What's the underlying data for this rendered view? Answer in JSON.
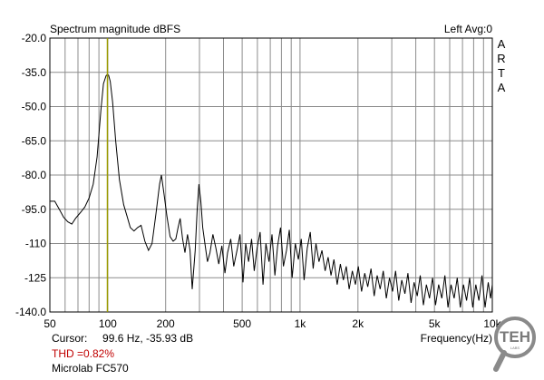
{
  "chart_data": {
    "type": "line",
    "title": "Spectrum magnitude dBFS",
    "right_title": "Left Avg:0",
    "watermark": [
      "A",
      "R",
      "T",
      "A"
    ],
    "xlabel": "Frequency(Hz)",
    "x_scale": "log",
    "xlim": [
      50,
      10000
    ],
    "ylim": [
      -140,
      -20
    ],
    "y_ticks": [
      -20.0,
      -35.0,
      -50.0,
      -65.0,
      -80.0,
      -95.0,
      -110,
      -125,
      -140.0
    ],
    "y_tick_labels": [
      "-20.0",
      "-35.0",
      "-50.0",
      "-65.0",
      "-80.0",
      "-95.0",
      "-110",
      "-125",
      "-140.0"
    ],
    "x_ticks": [
      50,
      100,
      200,
      500,
      1000,
      2000,
      5000,
      10000
    ],
    "x_tick_labels": [
      "50",
      "100",
      "200",
      "500",
      "1k",
      "2k",
      "5k",
      "10k"
    ],
    "grid": true,
    "cursor_frequency_hz": 99.6,
    "cursor_level_db": -35.93,
    "series": [
      {
        "color": "#000000",
        "points": [
          [
            50,
            -91.5
          ],
          [
            53,
            -91.5
          ],
          [
            56,
            -95
          ],
          [
            59,
            -98.5
          ],
          [
            62,
            -100.5
          ],
          [
            65,
            -101.5
          ],
          [
            68,
            -99
          ],
          [
            72,
            -96.5
          ],
          [
            76,
            -94
          ],
          [
            80,
            -90
          ],
          [
            84,
            -84
          ],
          [
            88,
            -72
          ],
          [
            92,
            -52
          ],
          [
            95,
            -40
          ],
          [
            98,
            -36.5
          ],
          [
            99.6,
            -35.9
          ],
          [
            101,
            -36.3
          ],
          [
            103,
            -39
          ],
          [
            106,
            -48
          ],
          [
            110,
            -65
          ],
          [
            115,
            -82
          ],
          [
            121,
            -93
          ],
          [
            126,
            -98
          ],
          [
            131,
            -103
          ],
          [
            137,
            -104.5
          ],
          [
            143,
            -103
          ],
          [
            149,
            -102
          ],
          [
            156,
            -109
          ],
          [
            163,
            -113
          ],
          [
            170,
            -110
          ],
          [
            178,
            -97
          ],
          [
            186,
            -84
          ],
          [
            190,
            -80
          ],
          [
            196,
            -88
          ],
          [
            203,
            -98
          ],
          [
            211,
            -107
          ],
          [
            219,
            -109
          ],
          [
            226,
            -108
          ],
          [
            232,
            -103
          ],
          [
            238,
            -99
          ],
          [
            245,
            -108
          ],
          [
            252,
            -114
          ],
          [
            260,
            -106
          ],
          [
            268,
            -113
          ],
          [
            275,
            -130
          ],
          [
            285,
            -113
          ],
          [
            292,
            -95
          ],
          [
            298,
            -84
          ],
          [
            305,
            -92
          ],
          [
            312,
            -103
          ],
          [
            320,
            -110
          ],
          [
            330,
            -118
          ],
          [
            340,
            -114
          ],
          [
            352,
            -106
          ],
          [
            365,
            -112
          ],
          [
            378,
            -119
          ],
          [
            392,
            -111
          ],
          [
            407,
            -123
          ],
          [
            420,
            -114
          ],
          [
            436,
            -108
          ],
          [
            452,
            -120
          ],
          [
            470,
            -113
          ],
          [
            487,
            -106
          ],
          [
            505,
            -127
          ],
          [
            522,
            -110
          ],
          [
            540,
            -118
          ],
          [
            560,
            -108
          ],
          [
            578,
            -122
          ],
          [
            598,
            -112
          ],
          [
            620,
            -105
          ],
          [
            642,
            -128
          ],
          [
            665,
            -110
          ],
          [
            690,
            -118
          ],
          [
            715,
            -106
          ],
          [
            740,
            -124
          ],
          [
            765,
            -111
          ],
          [
            792,
            -103
          ],
          [
            820,
            -120
          ],
          [
            850,
            -113
          ],
          [
            880,
            -104
          ],
          [
            910,
            -125
          ],
          [
            945,
            -110
          ],
          [
            980,
            -117
          ],
          [
            1015,
            -108
          ],
          [
            1050,
            -126
          ],
          [
            1090,
            -112
          ],
          [
            1130,
            -105
          ],
          [
            1170,
            -121
          ],
          [
            1210,
            -110
          ],
          [
            1255,
            -118
          ],
          [
            1300,
            -113
          ],
          [
            1350,
            -122
          ],
          [
            1400,
            -116
          ],
          [
            1450,
            -124
          ],
          [
            1500,
            -117
          ],
          [
            1560,
            -128
          ],
          [
            1620,
            -119
          ],
          [
            1680,
            -126
          ],
          [
            1740,
            -120
          ],
          [
            1800,
            -130
          ],
          [
            1870,
            -122
          ],
          [
            1940,
            -128
          ],
          [
            2010,
            -120
          ],
          [
            2090,
            -131
          ],
          [
            2170,
            -123
          ],
          [
            2250,
            -129
          ],
          [
            2340,
            -121
          ],
          [
            2430,
            -133
          ],
          [
            2520,
            -124
          ],
          [
            2610,
            -130
          ],
          [
            2710,
            -122
          ],
          [
            2810,
            -134
          ],
          [
            2920,
            -125
          ],
          [
            3030,
            -131
          ],
          [
            3140,
            -122
          ],
          [
            3260,
            -135
          ],
          [
            3380,
            -126
          ],
          [
            3510,
            -132
          ],
          [
            3640,
            -123
          ],
          [
            3780,
            -136
          ],
          [
            3920,
            -127
          ],
          [
            4070,
            -133
          ],
          [
            4220,
            -124
          ],
          [
            4380,
            -137
          ],
          [
            4540,
            -128
          ],
          [
            4710,
            -134
          ],
          [
            4890,
            -125
          ],
          [
            5070,
            -137
          ],
          [
            5260,
            -128
          ],
          [
            5460,
            -134
          ],
          [
            5670,
            -124
          ],
          [
            5880,
            -138
          ],
          [
            6100,
            -128
          ],
          [
            6330,
            -134
          ],
          [
            6570,
            -125
          ],
          [
            6820,
            -138
          ],
          [
            7080,
            -128
          ],
          [
            7350,
            -135
          ],
          [
            7620,
            -125
          ],
          [
            7910,
            -138
          ],
          [
            8210,
            -128
          ],
          [
            8520,
            -135
          ],
          [
            8840,
            -124
          ],
          [
            9170,
            -138
          ],
          [
            9520,
            -127
          ],
          [
            9800,
            -134
          ],
          [
            10000,
            -128
          ]
        ]
      }
    ]
  },
  "footer": {
    "cursor_label": "Cursor:",
    "cursor_value": "99.6 Hz, -35.93 dB",
    "thd": "THD =0.82%",
    "device": "Microlab FC570"
  },
  "logo": {
    "text": "TEH",
    "subtext": "LABS",
    "color": "#888888"
  }
}
